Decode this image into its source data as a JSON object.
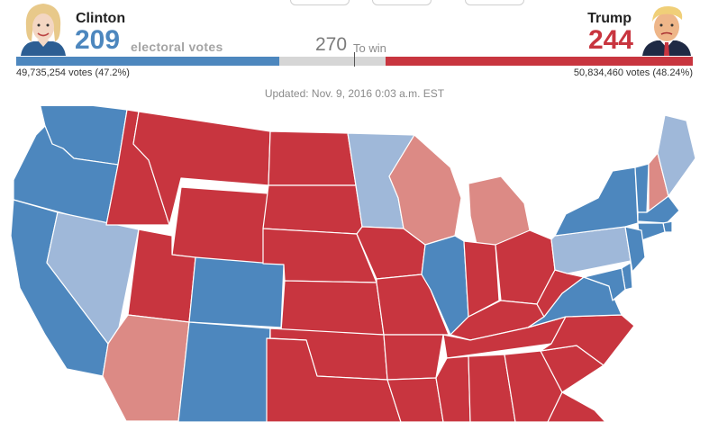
{
  "colors": {
    "dem": "#4d87be",
    "dem_lean": "#9fb8d9",
    "rep": "#c8353f",
    "rep_lean": "#dc8a85",
    "undecided": "#d6d6d6",
    "border": "#ffffff"
  },
  "candidates": {
    "left": {
      "name": "Clinton",
      "electoral_votes": "209",
      "ev_label": "electoral votes",
      "popular_votes": "49,735,254 votes (47.2%)",
      "avatar_icon": "clinton-portrait-icon"
    },
    "right": {
      "name": "Trump",
      "electoral_votes": "244",
      "popular_votes": "50,834,460 votes (48.24%)",
      "avatar_icon": "trump-portrait-icon"
    }
  },
  "win_threshold": {
    "number": "270",
    "label": "To win"
  },
  "bar": {
    "total": 538,
    "dem": 209,
    "rep": 244
  },
  "updated": "Updated: Nov. 9, 2016 0:03 a.m. EST",
  "map": {
    "states": [
      {
        "id": "WA",
        "status": "dem"
      },
      {
        "id": "OR",
        "status": "dem"
      },
      {
        "id": "CA",
        "status": "dem"
      },
      {
        "id": "NV",
        "status": "dem_lean"
      },
      {
        "id": "ID",
        "status": "rep"
      },
      {
        "id": "MT",
        "status": "rep"
      },
      {
        "id": "WY",
        "status": "rep"
      },
      {
        "id": "UT",
        "status": "rep"
      },
      {
        "id": "AZ",
        "status": "rep_lean"
      },
      {
        "id": "CO",
        "status": "dem"
      },
      {
        "id": "NM",
        "status": "dem"
      },
      {
        "id": "ND",
        "status": "rep"
      },
      {
        "id": "SD",
        "status": "rep"
      },
      {
        "id": "NE",
        "status": "rep"
      },
      {
        "id": "KS",
        "status": "rep"
      },
      {
        "id": "OK",
        "status": "rep"
      },
      {
        "id": "TX",
        "status": "rep"
      },
      {
        "id": "MN",
        "status": "dem_lean"
      },
      {
        "id": "IA",
        "status": "rep"
      },
      {
        "id": "MO",
        "status": "rep"
      },
      {
        "id": "AR",
        "status": "rep"
      },
      {
        "id": "LA",
        "status": "rep"
      },
      {
        "id": "WI",
        "status": "rep_lean"
      },
      {
        "id": "IL",
        "status": "dem"
      },
      {
        "id": "MI",
        "status": "rep_lean"
      },
      {
        "id": "IN",
        "status": "rep"
      },
      {
        "id": "OH",
        "status": "rep"
      },
      {
        "id": "KY",
        "status": "rep"
      },
      {
        "id": "TN",
        "status": "rep"
      },
      {
        "id": "MS",
        "status": "rep"
      },
      {
        "id": "AL",
        "status": "rep"
      },
      {
        "id": "GA",
        "status": "rep"
      },
      {
        "id": "FL",
        "status": "rep"
      },
      {
        "id": "SC",
        "status": "rep"
      },
      {
        "id": "NC",
        "status": "rep"
      },
      {
        "id": "VA",
        "status": "dem"
      },
      {
        "id": "WV",
        "status": "rep"
      },
      {
        "id": "PA",
        "status": "dem_lean"
      },
      {
        "id": "NY",
        "status": "dem"
      },
      {
        "id": "VT",
        "status": "dem"
      },
      {
        "id": "NH",
        "status": "rep_lean"
      },
      {
        "id": "ME",
        "status": "dem_lean"
      },
      {
        "id": "MA",
        "status": "dem"
      },
      {
        "id": "RI",
        "status": "dem"
      },
      {
        "id": "CT",
        "status": "dem"
      },
      {
        "id": "NJ",
        "status": "dem"
      },
      {
        "id": "DE",
        "status": "dem"
      },
      {
        "id": "MD",
        "status": "dem"
      }
    ]
  }
}
